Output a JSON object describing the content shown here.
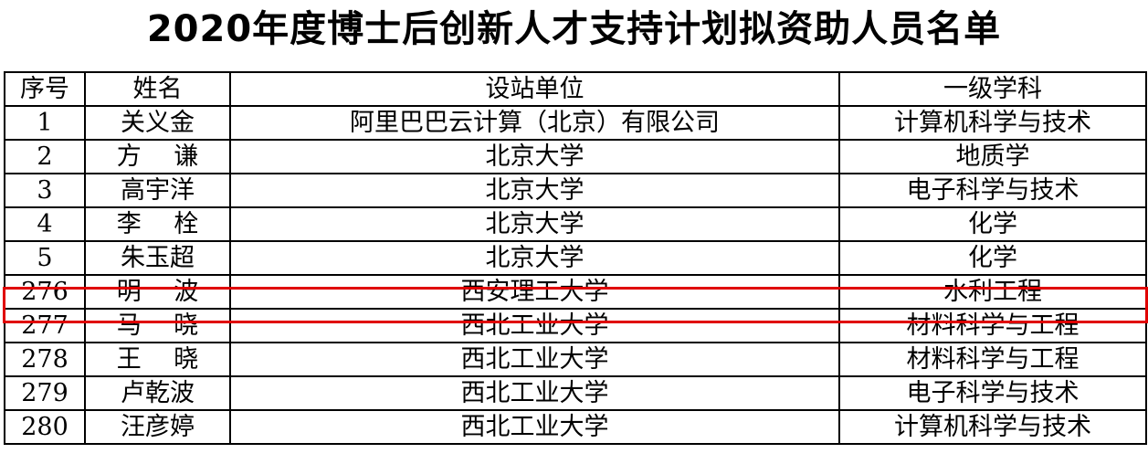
{
  "title": "2020年度博士后创新人才支持计划拟资助人员名单",
  "headers": [
    "序号",
    "姓名",
    "设站单位",
    "一级学科"
  ],
  "rows": [
    [
      "1",
      "关义金",
      "阿里巴巴云计算（北京）有限公司",
      "计算机科学与技术"
    ],
    [
      "2",
      "方　 谦",
      "北京大学",
      "地质学"
    ],
    [
      "3",
      "高宇洋",
      "北京大学",
      "电子科学与技术"
    ],
    [
      "4",
      "李　 栓",
      "北京大学",
      "化学"
    ],
    [
      "5",
      "朱玉超",
      "北京大学",
      "化学"
    ],
    [
      "276",
      "明　 波",
      "西安理工大学",
      "水利工程"
    ],
    [
      "277",
      "马　 晓",
      "西北工业大学",
      "材料科学与工程"
    ],
    [
      "278",
      "王　 晓",
      "西北工业大学",
      "材料科学与工程"
    ],
    [
      "279",
      "卢乾波",
      "西北工业大学",
      "电子科学与技术"
    ],
    [
      "280",
      "汪彦婷",
      "西北工业大学",
      "计算机科学与技术"
    ]
  ],
  "highlight_color": "#e00000",
  "highlighted_row": "276"
}
